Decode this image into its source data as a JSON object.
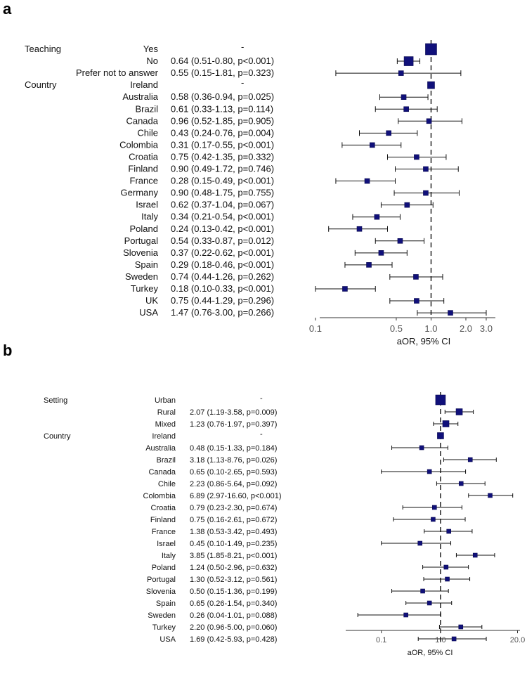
{
  "chart_data": [
    {
      "panel": "a",
      "type": "forest",
      "xscale": "log",
      "xlabel": "aOR, 95% CI",
      "xticks": [
        0.1,
        0.5,
        1.0,
        2.0,
        3.0
      ],
      "xtick_labels": [
        "0.1",
        "0.5",
        "1.0",
        "2.0",
        "3.0"
      ],
      "xlim": [
        0.08,
        3.6
      ],
      "reference": 1.0,
      "rows": [
        {
          "group": "Teaching",
          "label": "Yes",
          "text": "-",
          "ref": true,
          "or": 1.0
        },
        {
          "group": "",
          "label": "No",
          "text": "0.64 (0.51-0.80, p<0.001)",
          "or": 0.64,
          "lo": 0.51,
          "hi": 0.8
        },
        {
          "group": "",
          "label": "Prefer not to answer",
          "text": "0.55 (0.15-1.81, p=0.323)",
          "or": 0.55,
          "lo": 0.15,
          "hi": 1.81
        },
        {
          "group": "Country",
          "label": "Ireland",
          "text": "-",
          "ref": true,
          "or": 1.0
        },
        {
          "group": "",
          "label": "Australia",
          "text": "0.58 (0.36-0.94, p=0.025)",
          "or": 0.58,
          "lo": 0.36,
          "hi": 0.94
        },
        {
          "group": "",
          "label": "Brazil",
          "text": "0.61 (0.33-1.13, p=0.114)",
          "or": 0.61,
          "lo": 0.33,
          "hi": 1.13
        },
        {
          "group": "",
          "label": "Canada",
          "text": "0.96 (0.52-1.85, p=0.905)",
          "or": 0.96,
          "lo": 0.52,
          "hi": 1.85
        },
        {
          "group": "",
          "label": "Chile",
          "text": "0.43 (0.24-0.76, p=0.004)",
          "or": 0.43,
          "lo": 0.24,
          "hi": 0.76
        },
        {
          "group": "",
          "label": "Colombia",
          "text": "0.31 (0.17-0.55, p<0.001)",
          "or": 0.31,
          "lo": 0.17,
          "hi": 0.55
        },
        {
          "group": "",
          "label": "Croatia",
          "text": "0.75 (0.42-1.35, p=0.332)",
          "or": 0.75,
          "lo": 0.42,
          "hi": 1.35
        },
        {
          "group": "",
          "label": "Finland",
          "text": "0.90 (0.49-1.72, p=0.746)",
          "or": 0.9,
          "lo": 0.49,
          "hi": 1.72
        },
        {
          "group": "",
          "label": "France",
          "text": "0.28 (0.15-0.49, p<0.001)",
          "or": 0.28,
          "lo": 0.15,
          "hi": 0.49
        },
        {
          "group": "",
          "label": "Germany",
          "text": "0.90 (0.48-1.75, p=0.755)",
          "or": 0.9,
          "lo": 0.48,
          "hi": 1.75
        },
        {
          "group": "",
          "label": "Israel",
          "text": "0.62 (0.37-1.04, p=0.067)",
          "or": 0.62,
          "lo": 0.37,
          "hi": 1.04
        },
        {
          "group": "",
          "label": "Italy",
          "text": "0.34 (0.21-0.54, p<0.001)",
          "or": 0.34,
          "lo": 0.21,
          "hi": 0.54
        },
        {
          "group": "",
          "label": "Poland",
          "text": "0.24 (0.13-0.42, p<0.001)",
          "or": 0.24,
          "lo": 0.13,
          "hi": 0.42
        },
        {
          "group": "",
          "label": "Portugal",
          "text": "0.54 (0.33-0.87, p=0.012)",
          "or": 0.54,
          "lo": 0.33,
          "hi": 0.87
        },
        {
          "group": "",
          "label": "Slovenia",
          "text": "0.37 (0.22-0.62, p<0.001)",
          "or": 0.37,
          "lo": 0.22,
          "hi": 0.62
        },
        {
          "group": "",
          "label": "Spain",
          "text": "0.29 (0.18-0.46, p<0.001)",
          "or": 0.29,
          "lo": 0.18,
          "hi": 0.46
        },
        {
          "group": "",
          "label": "Sweden",
          "text": "0.74 (0.44-1.26, p=0.262)",
          "or": 0.74,
          "lo": 0.44,
          "hi": 1.26
        },
        {
          "group": "",
          "label": "Turkey",
          "text": "0.18 (0.10-0.33, p<0.001)",
          "or": 0.18,
          "lo": 0.1,
          "hi": 0.33
        },
        {
          "group": "",
          "label": "UK",
          "text": "0.75 (0.44-1.29, p=0.296)",
          "or": 0.75,
          "lo": 0.44,
          "hi": 1.29
        },
        {
          "group": "",
          "label": "USA",
          "text": "1.47 (0.76-3.00, p=0.266)",
          "or": 1.47,
          "lo": 0.76,
          "hi": 3.0
        }
      ]
    },
    {
      "panel": "b",
      "type": "forest",
      "xscale": "log",
      "xlabel": "aOR, 95% CI",
      "xticks": [
        0.1,
        1.0,
        20.0
      ],
      "xtick_labels": [
        "0.1",
        "1.0",
        "20.0"
      ],
      "xlim": [
        0.025,
        22
      ],
      "reference": 1.0,
      "rows": [
        {
          "group": "Setting",
          "label": "Urban",
          "text": "-",
          "ref": true,
          "or": 1.0
        },
        {
          "group": "",
          "label": "Rural",
          "text": "2.07 (1.19-3.58, p=0.009)",
          "or": 2.07,
          "lo": 1.19,
          "hi": 3.58
        },
        {
          "group": "",
          "label": "Mixed",
          "text": "1.23 (0.76-1.97, p=0.397)",
          "or": 1.23,
          "lo": 0.76,
          "hi": 1.97
        },
        {
          "group": "Country",
          "label": "Ireland",
          "text": "-",
          "ref": true,
          "or": 1.0
        },
        {
          "group": "",
          "label": "Australia",
          "text": "0.48 (0.15-1.33, p=0.184)",
          "or": 0.48,
          "lo": 0.15,
          "hi": 1.33
        },
        {
          "group": "",
          "label": "Brazil",
          "text": "3.18 (1.13-8.76, p=0.026)",
          "or": 3.18,
          "lo": 1.13,
          "hi": 8.76
        },
        {
          "group": "",
          "label": "Canada",
          "text": "0.65 (0.10-2.65, p=0.593)",
          "or": 0.65,
          "lo": 0.1,
          "hi": 2.65
        },
        {
          "group": "",
          "label": "Chile",
          "text": "2.23 (0.86-5.64, p=0.092)",
          "or": 2.23,
          "lo": 0.86,
          "hi": 5.64
        },
        {
          "group": "",
          "label": "Colombia",
          "text": "6.89 (2.97-16.60, p<0.001)",
          "or": 6.89,
          "lo": 2.97,
          "hi": 16.6
        },
        {
          "group": "",
          "label": "Croatia",
          "text": "0.79 (0.23-2.30, p=0.674)",
          "or": 0.79,
          "lo": 0.23,
          "hi": 2.3
        },
        {
          "group": "",
          "label": "Finland",
          "text": "0.75 (0.16-2.61, p=0.672)",
          "or": 0.75,
          "lo": 0.16,
          "hi": 2.61
        },
        {
          "group": "",
          "label": "France",
          "text": "1.38 (0.53-3.42, p=0.493)",
          "or": 1.38,
          "lo": 0.53,
          "hi": 3.42
        },
        {
          "group": "",
          "label": "Israel",
          "text": "0.45 (0.10-1.49, p=0.235)",
          "or": 0.45,
          "lo": 0.1,
          "hi": 1.49
        },
        {
          "group": "",
          "label": "Italy",
          "text": "3.85 (1.85-8.21, p<0.001)",
          "or": 3.85,
          "lo": 1.85,
          "hi": 8.21
        },
        {
          "group": "",
          "label": "Poland",
          "text": "1.24 (0.50-2.96, p=0.632)",
          "or": 1.24,
          "lo": 0.5,
          "hi": 2.96
        },
        {
          "group": "",
          "label": "Portugal",
          "text": "1.30 (0.52-3.12, p=0.561)",
          "or": 1.3,
          "lo": 0.52,
          "hi": 3.12
        },
        {
          "group": "",
          "label": "Slovenia",
          "text": "0.50 (0.15-1.36, p=0.199)",
          "or": 0.5,
          "lo": 0.15,
          "hi": 1.36
        },
        {
          "group": "",
          "label": "Spain",
          "text": "0.65 (0.26-1.54, p=0.340)",
          "or": 0.65,
          "lo": 0.26,
          "hi": 1.54
        },
        {
          "group": "",
          "label": "Sweden",
          "text": "0.26 (0.04-1.01, p=0.088)",
          "or": 0.26,
          "lo": 0.04,
          "hi": 1.01
        },
        {
          "group": "",
          "label": "Turkey",
          "text": "2.20 (0.96-5.00, p=0.060)",
          "or": 2.2,
          "lo": 0.96,
          "hi": 5.0
        },
        {
          "group": "",
          "label": "USA",
          "text": "1.69 (0.42-5.93, p=0.428)",
          "or": 1.69,
          "lo": 0.42,
          "hi": 5.93
        }
      ]
    }
  ],
  "panels": {
    "a": {
      "letter": "a"
    },
    "b": {
      "letter": "b"
    }
  }
}
